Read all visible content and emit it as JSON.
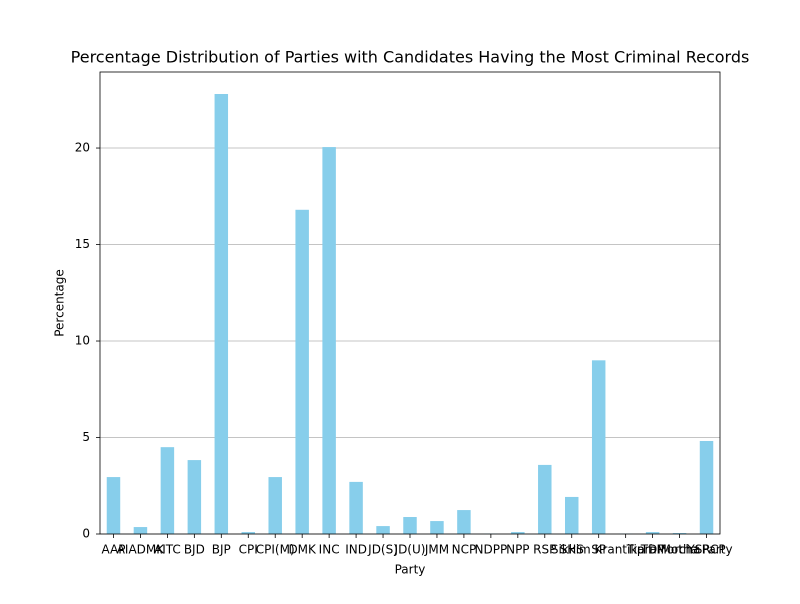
{
  "chart_data": {
    "type": "bar",
    "title": "Percentage Distribution of Parties with Candidates Having the Most Criminal Records",
    "x_label": "Party",
    "y_label": "Percentage",
    "categories": [
      "AAP",
      "AIADMK",
      "AITC",
      "BJD",
      "BJP",
      "CPI",
      "CPI(M)",
      "DMK",
      "INC",
      "IND",
      "JD(S)",
      "JD(U)",
      "JMM",
      "NCP",
      "NDPP",
      "NPP",
      "RSP",
      "SHS",
      "SP",
      "Sikkim Krantikari Morcha",
      "TDP",
      "Tipra Motha Party",
      "YSRCP"
    ],
    "values": [
      2.95,
      0.36,
      4.5,
      3.83,
      22.8,
      0.1,
      2.95,
      16.8,
      20.05,
      2.7,
      0.41,
      0.88,
      0.67,
      1.24,
      0.02,
      0.1,
      3.58,
      1.92,
      9.0,
      0.02,
      0.1,
      0.05,
      4.82
    ],
    "color": "#87ceeb",
    "ylim": [
      0,
      23.94
    ],
    "yticks": [
      0,
      5,
      10,
      15,
      20
    ],
    "grid": true
  }
}
